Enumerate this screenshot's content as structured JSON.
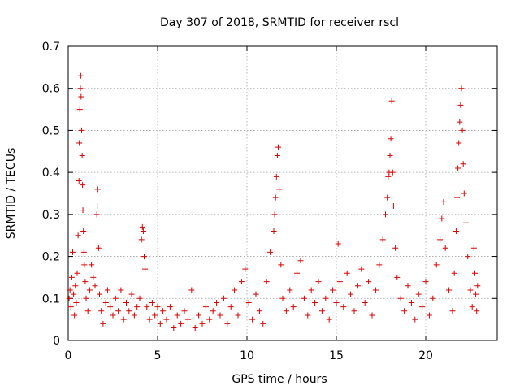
{
  "chart_data": {
    "type": "scatter",
    "title": "Day 307 of 2018, SRMTID for receiver rscl",
    "xlabel": "GPS time / hours",
    "ylabel": "SRMTID / TECUs",
    "xlim": [
      0,
      24
    ],
    "ylim": [
      0,
      0.7
    ],
    "xticks": [
      0,
      5,
      10,
      15,
      20
    ],
    "yticks": [
      0,
      0.1,
      0.2,
      0.3,
      0.4,
      0.5,
      0.6,
      0.7
    ],
    "grid": true,
    "marker": "+",
    "color": "#dd0000",
    "series": [
      {
        "name": "SRMTID",
        "points": [
          [
            0.05,
            0.1
          ],
          [
            0.1,
            0.12
          ],
          [
            0.15,
            0.08
          ],
          [
            0.2,
            0.15
          ],
          [
            0.25,
            0.21
          ],
          [
            0.3,
            0.11
          ],
          [
            0.35,
            0.06
          ],
          [
            0.4,
            0.13
          ],
          [
            0.45,
            0.09
          ],
          [
            0.5,
            0.16
          ],
          [
            0.55,
            0.25
          ],
          [
            0.6,
            0.38
          ],
          [
            0.62,
            0.47
          ],
          [
            0.65,
            0.55
          ],
          [
            0.68,
            0.6
          ],
          [
            0.7,
            0.63
          ],
          [
            0.72,
            0.58
          ],
          [
            0.75,
            0.5
          ],
          [
            0.78,
            0.44
          ],
          [
            0.8,
            0.37
          ],
          [
            0.82,
            0.31
          ],
          [
            0.85,
            0.26
          ],
          [
            0.88,
            0.21
          ],
          [
            0.9,
            0.18
          ],
          [
            0.95,
            0.14
          ],
          [
            1.0,
            0.1
          ],
          [
            1.1,
            0.07
          ],
          [
            1.2,
            0.12
          ],
          [
            1.3,
            0.18
          ],
          [
            1.4,
            0.15
          ],
          [
            1.5,
            0.13
          ],
          [
            1.6,
            0.3
          ],
          [
            1.62,
            0.32
          ],
          [
            1.65,
            0.36
          ],
          [
            1.7,
            0.22
          ],
          [
            1.75,
            0.11
          ],
          [
            1.85,
            0.07
          ],
          [
            1.95,
            0.04
          ],
          [
            2.1,
            0.09
          ],
          [
            2.2,
            0.12
          ],
          [
            2.35,
            0.08
          ],
          [
            2.5,
            0.06
          ],
          [
            2.65,
            0.1
          ],
          [
            2.8,
            0.07
          ],
          [
            2.95,
            0.12
          ],
          [
            3.1,
            0.05
          ],
          [
            3.25,
            0.09
          ],
          [
            3.4,
            0.07
          ],
          [
            3.55,
            0.11
          ],
          [
            3.7,
            0.06
          ],
          [
            3.85,
            0.08
          ],
          [
            4.0,
            0.1
          ],
          [
            4.1,
            0.24
          ],
          [
            4.15,
            0.27
          ],
          [
            4.2,
            0.26
          ],
          [
            4.25,
            0.2
          ],
          [
            4.3,
            0.17
          ],
          [
            4.4,
            0.08
          ],
          [
            4.55,
            0.05
          ],
          [
            4.7,
            0.09
          ],
          [
            4.85,
            0.06
          ],
          [
            5.0,
            0.08
          ],
          [
            5.15,
            0.04
          ],
          [
            5.3,
            0.07
          ],
          [
            5.5,
            0.05
          ],
          [
            5.7,
            0.08
          ],
          [
            5.9,
            0.03
          ],
          [
            6.1,
            0.06
          ],
          [
            6.3,
            0.04
          ],
          [
            6.5,
            0.07
          ],
          [
            6.7,
            0.05
          ],
          [
            6.9,
            0.12
          ],
          [
            7.1,
            0.03
          ],
          [
            7.3,
            0.06
          ],
          [
            7.5,
            0.04
          ],
          [
            7.7,
            0.08
          ],
          [
            7.9,
            0.05
          ],
          [
            8.1,
            0.07
          ],
          [
            8.3,
            0.09
          ],
          [
            8.5,
            0.06
          ],
          [
            8.7,
            0.1
          ],
          [
            8.9,
            0.04
          ],
          [
            9.1,
            0.08
          ],
          [
            9.3,
            0.12
          ],
          [
            9.5,
            0.06
          ],
          [
            9.7,
            0.14
          ],
          [
            9.9,
            0.17
          ],
          [
            10.1,
            0.09
          ],
          [
            10.3,
            0.05
          ],
          [
            10.5,
            0.11
          ],
          [
            10.7,
            0.07
          ],
          [
            10.9,
            0.04
          ],
          [
            11.1,
            0.14
          ],
          [
            11.3,
            0.21
          ],
          [
            11.5,
            0.26
          ],
          [
            11.55,
            0.3
          ],
          [
            11.6,
            0.34
          ],
          [
            11.65,
            0.39
          ],
          [
            11.7,
            0.44
          ],
          [
            11.75,
            0.46
          ],
          [
            11.8,
            0.36
          ],
          [
            11.9,
            0.18
          ],
          [
            12.0,
            0.1
          ],
          [
            12.2,
            0.07
          ],
          [
            12.4,
            0.12
          ],
          [
            12.6,
            0.08
          ],
          [
            12.8,
            0.16
          ],
          [
            13.0,
            0.19
          ],
          [
            13.2,
            0.1
          ],
          [
            13.4,
            0.06
          ],
          [
            13.6,
            0.12
          ],
          [
            13.8,
            0.09
          ],
          [
            14.0,
            0.14
          ],
          [
            14.2,
            0.07
          ],
          [
            14.4,
            0.1
          ],
          [
            14.6,
            0.05
          ],
          [
            14.8,
            0.12
          ],
          [
            15.0,
            0.09
          ],
          [
            15.1,
            0.23
          ],
          [
            15.2,
            0.14
          ],
          [
            15.4,
            0.08
          ],
          [
            15.6,
            0.16
          ],
          [
            15.8,
            0.11
          ],
          [
            16.0,
            0.07
          ],
          [
            16.2,
            0.13
          ],
          [
            16.4,
            0.17
          ],
          [
            16.6,
            0.09
          ],
          [
            16.8,
            0.14
          ],
          [
            17.0,
            0.06
          ],
          [
            17.2,
            0.12
          ],
          [
            17.4,
            0.18
          ],
          [
            17.6,
            0.24
          ],
          [
            17.75,
            0.3
          ],
          [
            17.85,
            0.34
          ],
          [
            17.9,
            0.39
          ],
          [
            17.95,
            0.4
          ],
          [
            18.0,
            0.44
          ],
          [
            18.05,
            0.48
          ],
          [
            18.1,
            0.57
          ],
          [
            18.15,
            0.4
          ],
          [
            18.2,
            0.32
          ],
          [
            18.3,
            0.22
          ],
          [
            18.4,
            0.15
          ],
          [
            18.6,
            0.1
          ],
          [
            18.8,
            0.07
          ],
          [
            19.0,
            0.13
          ],
          [
            19.2,
            0.09
          ],
          [
            19.4,
            0.05
          ],
          [
            19.6,
            0.11
          ],
          [
            19.8,
            0.08
          ],
          [
            20.0,
            0.14
          ],
          [
            20.2,
            0.06
          ],
          [
            20.4,
            0.1
          ],
          [
            20.6,
            0.18
          ],
          [
            20.8,
            0.24
          ],
          [
            20.9,
            0.29
          ],
          [
            21.0,
            0.33
          ],
          [
            21.1,
            0.22
          ],
          [
            21.3,
            0.12
          ],
          [
            21.5,
            0.07
          ],
          [
            21.6,
            0.16
          ],
          [
            21.7,
            0.26
          ],
          [
            21.75,
            0.34
          ],
          [
            21.8,
            0.41
          ],
          [
            21.85,
            0.47
          ],
          [
            21.9,
            0.52
          ],
          [
            21.95,
            0.56
          ],
          [
            22.0,
            0.6
          ],
          [
            22.05,
            0.5
          ],
          [
            22.1,
            0.42
          ],
          [
            22.15,
            0.35
          ],
          [
            22.25,
            0.28
          ],
          [
            22.35,
            0.2
          ],
          [
            22.5,
            0.12
          ],
          [
            22.6,
            0.08
          ],
          [
            22.7,
            0.22
          ],
          [
            22.75,
            0.16
          ],
          [
            22.8,
            0.11
          ],
          [
            22.85,
            0.07
          ],
          [
            22.9,
            0.13
          ]
        ]
      }
    ]
  }
}
